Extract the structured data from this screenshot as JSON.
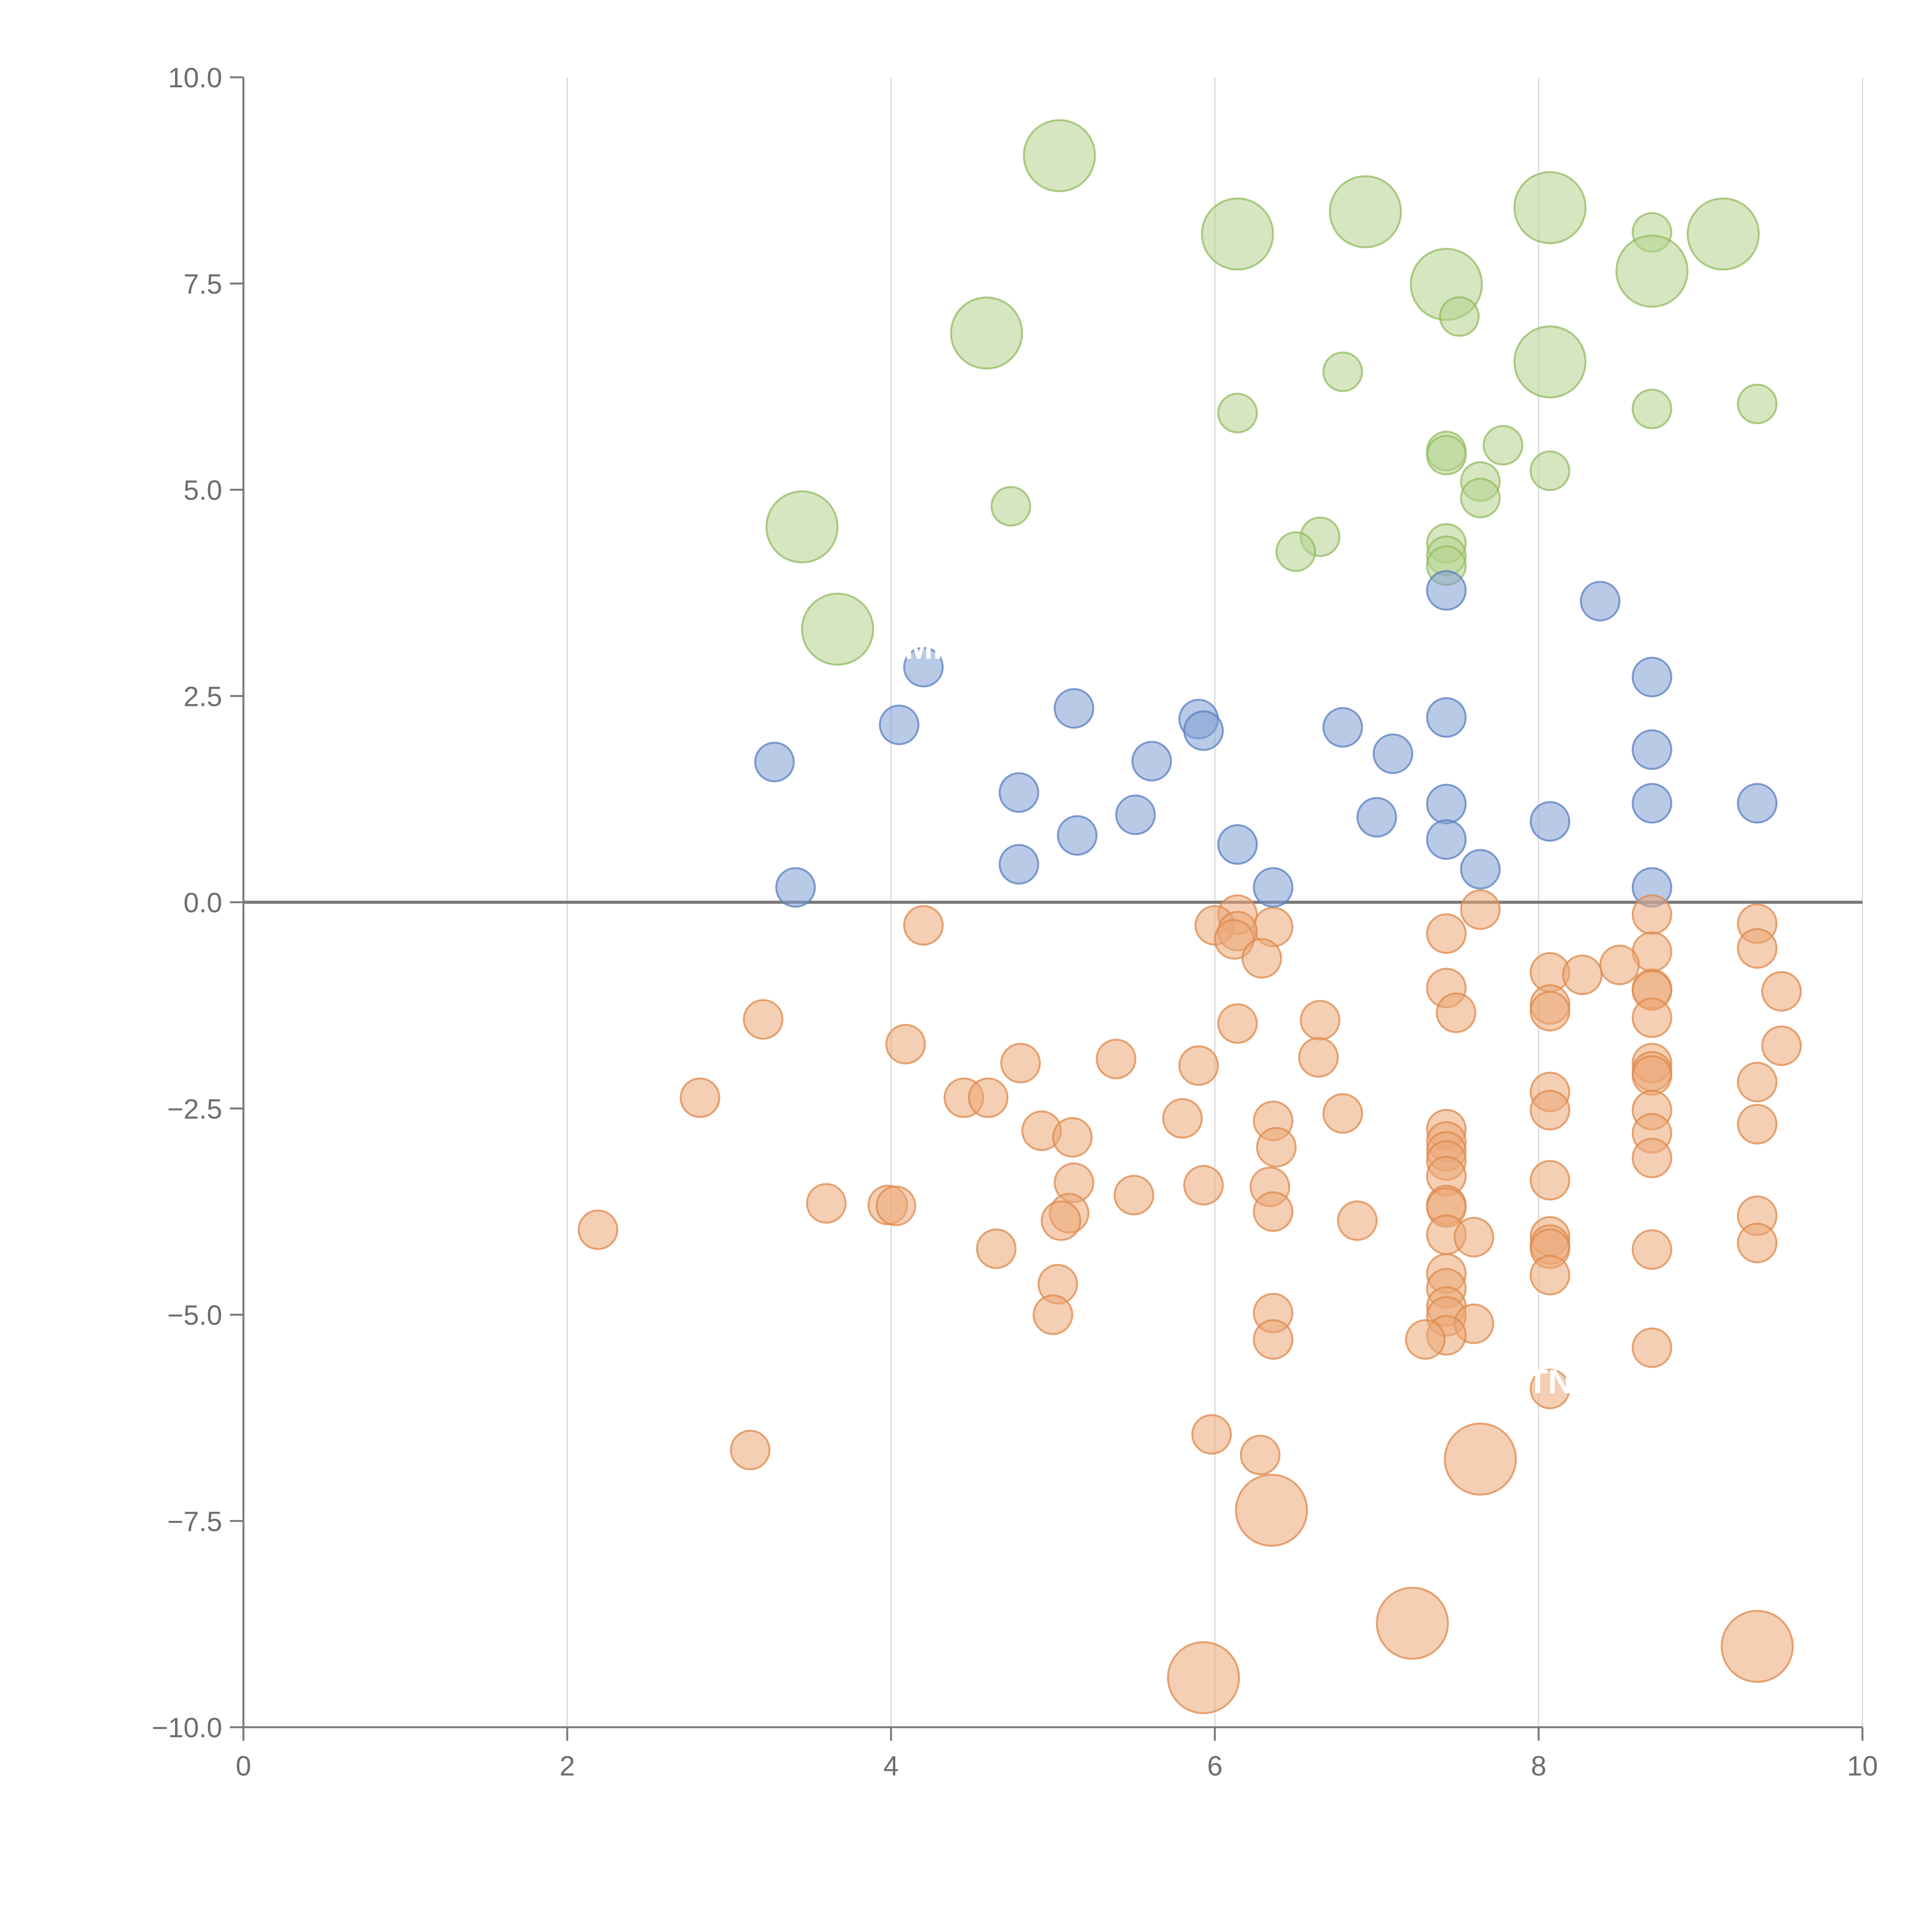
{
  "chart_data": {
    "type": "scatter",
    "title": "",
    "xlabel": "",
    "ylabel": "",
    "xlim": [
      0,
      10
    ],
    "ylim": [
      -10,
      10
    ],
    "grid": {
      "x": true,
      "y": false
    },
    "zero_line": true,
    "x_ticks": [
      0,
      2,
      4,
      6,
      8,
      10
    ],
    "x_tick_labels": [
      "0",
      "2",
      "4",
      "6",
      "8",
      "10"
    ],
    "y_ticks": [
      10,
      7.5,
      5,
      2.5,
      0,
      -2.5,
      -5,
      -7.5,
      -10
    ],
    "y_tick_labels": [
      "10.0",
      "7.5",
      "5.0",
      "2.5",
      "0.0",
      "−2.5",
      "−5.0",
      "−7.5",
      "−10.0"
    ],
    "colors": {
      "green_fill": "#b5d18c",
      "green_stroke": "#93bb60",
      "blue_fill": "#7f9fd4",
      "blue_stroke": "#5b7fc2",
      "orange_fill": "#eba876",
      "orange_stroke": "#df8a4c"
    },
    "series": [
      {
        "name": "green",
        "color": "green",
        "points": [
          {
            "x": 5.04,
            "y": 9.05,
            "s": 3
          },
          {
            "x": 6.14,
            "y": 8.1,
            "s": 3
          },
          {
            "x": 6.93,
            "y": 8.37,
            "s": 3
          },
          {
            "x": 8.07,
            "y": 8.42,
            "s": 3
          },
          {
            "x": 9.14,
            "y": 8.1,
            "s": 3
          },
          {
            "x": 8.7,
            "y": 8.12,
            "s": 1
          },
          {
            "x": 8.7,
            "y": 7.65,
            "s": 3
          },
          {
            "x": 7.43,
            "y": 7.49,
            "s": 3
          },
          {
            "x": 7.51,
            "y": 7.1,
            "s": 1
          },
          {
            "x": 4.59,
            "y": 6.9,
            "s": 3
          },
          {
            "x": 8.07,
            "y": 6.55,
            "s": 3
          },
          {
            "x": 6.79,
            "y": 6.43,
            "s": 1
          },
          {
            "x": 6.14,
            "y": 5.93,
            "s": 1
          },
          {
            "x": 8.7,
            "y": 5.98,
            "s": 1
          },
          {
            "x": 9.35,
            "y": 6.04,
            "s": 1
          },
          {
            "x": 7.43,
            "y": 5.47,
            "s": 1
          },
          {
            "x": 7.43,
            "y": 5.42,
            "s": 1
          },
          {
            "x": 7.78,
            "y": 5.54,
            "s": 1
          },
          {
            "x": 7.64,
            "y": 5.1,
            "s": 1
          },
          {
            "x": 7.64,
            "y": 4.9,
            "s": 1
          },
          {
            "x": 8.07,
            "y": 5.23,
            "s": 1
          },
          {
            "x": 4.74,
            "y": 4.8,
            "s": 1
          },
          {
            "x": 3.45,
            "y": 4.55,
            "s": 3
          },
          {
            "x": 6.65,
            "y": 4.43,
            "s": 1
          },
          {
            "x": 6.5,
            "y": 4.25,
            "s": 1
          },
          {
            "x": 7.43,
            "y": 4.35,
            "s": 1
          },
          {
            "x": 7.43,
            "y": 4.2,
            "s": 1
          },
          {
            "x": 7.43,
            "y": 4.08,
            "s": 1
          },
          {
            "x": 3.67,
            "y": 3.31,
            "s": 3
          }
        ]
      },
      {
        "name": "blue",
        "color": "blue",
        "points": [
          {
            "x": 7.43,
            "y": 3.78
          },
          {
            "x": 8.38,
            "y": 3.65
          },
          {
            "x": 4.2,
            "y": 2.85
          },
          {
            "x": 8.7,
            "y": 2.73
          },
          {
            "x": 5.13,
            "y": 2.35
          },
          {
            "x": 5.9,
            "y": 2.22
          },
          {
            "x": 7.43,
            "y": 2.24
          },
          {
            "x": 4.05,
            "y": 2.15
          },
          {
            "x": 5.93,
            "y": 2.08
          },
          {
            "x": 6.79,
            "y": 2.12
          },
          {
            "x": 8.7,
            "y": 1.85
          },
          {
            "x": 7.1,
            "y": 1.8
          },
          {
            "x": 3.28,
            "y": 1.7
          },
          {
            "x": 5.61,
            "y": 1.71
          },
          {
            "x": 4.79,
            "y": 1.33
          },
          {
            "x": 7.43,
            "y": 1.19
          },
          {
            "x": 8.7,
            "y": 1.2
          },
          {
            "x": 9.35,
            "y": 1.2
          },
          {
            "x": 5.51,
            "y": 1.06
          },
          {
            "x": 7.0,
            "y": 1.03
          },
          {
            "x": 8.07,
            "y": 0.98
          },
          {
            "x": 5.15,
            "y": 0.81
          },
          {
            "x": 7.43,
            "y": 0.76
          },
          {
            "x": 6.14,
            "y": 0.7
          },
          {
            "x": 4.79,
            "y": 0.46
          },
          {
            "x": 7.64,
            "y": 0.4
          },
          {
            "x": 3.41,
            "y": 0.18
          },
          {
            "x": 6.36,
            "y": 0.18
          },
          {
            "x": 8.7,
            "y": 0.18
          }
        ]
      },
      {
        "name": "orange",
        "color": "orange",
        "points": [
          {
            "x": 6.14,
            "y": -0.15
          },
          {
            "x": 7.64,
            "y": -0.09
          },
          {
            "x": 8.7,
            "y": -0.15
          },
          {
            "x": 4.2,
            "y": -0.28
          },
          {
            "x": 6.0,
            "y": -0.28
          },
          {
            "x": 6.36,
            "y": -0.3
          },
          {
            "x": 6.14,
            "y": -0.35
          },
          {
            "x": 6.12,
            "y": -0.45
          },
          {
            "x": 7.43,
            "y": -0.38
          },
          {
            "x": 9.35,
            "y": -0.26
          },
          {
            "x": 8.7,
            "y": -0.6
          },
          {
            "x": 9.35,
            "y": -0.56
          },
          {
            "x": 6.29,
            "y": -0.68
          },
          {
            "x": 8.5,
            "y": -0.76
          },
          {
            "x": 8.07,
            "y": -0.85
          },
          {
            "x": 8.27,
            "y": -0.88
          },
          {
            "x": 7.43,
            "y": -1.04
          },
          {
            "x": 8.7,
            "y": -1.05
          },
          {
            "x": 8.7,
            "y": -1.07
          },
          {
            "x": 9.5,
            "y": -1.08
          },
          {
            "x": 8.07,
            "y": -1.24
          },
          {
            "x": 8.07,
            "y": -1.32
          },
          {
            "x": 7.49,
            "y": -1.34
          },
          {
            "x": 3.21,
            "y": -1.42
          },
          {
            "x": 6.65,
            "y": -1.43
          },
          {
            "x": 6.14,
            "y": -1.47
          },
          {
            "x": 8.7,
            "y": -1.4
          },
          {
            "x": 4.09,
            "y": -1.72
          },
          {
            "x": 9.5,
            "y": -1.74
          },
          {
            "x": 6.64,
            "y": -1.88
          },
          {
            "x": 5.39,
            "y": -1.9
          },
          {
            "x": 4.8,
            "y": -1.95
          },
          {
            "x": 5.9,
            "y": -1.98
          },
          {
            "x": 8.7,
            "y": -1.95
          },
          {
            "x": 8.7,
            "y": -2.05
          },
          {
            "x": 8.7,
            "y": -2.1
          },
          {
            "x": 9.35,
            "y": -2.18
          },
          {
            "x": 2.82,
            "y": -2.37
          },
          {
            "x": 4.45,
            "y": -2.37
          },
          {
            "x": 4.6,
            "y": -2.37
          },
          {
            "x": 8.07,
            "y": -2.3
          },
          {
            "x": 8.07,
            "y": -2.52
          },
          {
            "x": 8.7,
            "y": -2.52
          },
          {
            "x": 6.79,
            "y": -2.56
          },
          {
            "x": 5.8,
            "y": -2.62
          },
          {
            "x": 6.36,
            "y": -2.65
          },
          {
            "x": 9.35,
            "y": -2.69
          },
          {
            "x": 7.43,
            "y": -2.75
          },
          {
            "x": 4.93,
            "y": -2.77
          },
          {
            "x": 8.7,
            "y": -2.8
          },
          {
            "x": 5.12,
            "y": -2.85
          },
          {
            "x": 7.43,
            "y": -2.9
          },
          {
            "x": 7.43,
            "y": -3.02
          },
          {
            "x": 6.38,
            "y": -2.97
          },
          {
            "x": 8.7,
            "y": -3.1
          },
          {
            "x": 7.43,
            "y": -3.13
          },
          {
            "x": 7.43,
            "y": -3.32
          },
          {
            "x": 8.07,
            "y": -3.37
          },
          {
            "x": 5.13,
            "y": -3.4
          },
          {
            "x": 5.93,
            "y": -3.43
          },
          {
            "x": 6.34,
            "y": -3.45
          },
          {
            "x": 5.5,
            "y": -3.55
          },
          {
            "x": 3.6,
            "y": -3.65
          },
          {
            "x": 3.98,
            "y": -3.67
          },
          {
            "x": 4.03,
            "y": -3.68
          },
          {
            "x": 7.43,
            "y": -3.67
          },
          {
            "x": 7.43,
            "y": -3.7
          },
          {
            "x": 6.36,
            "y": -3.75
          },
          {
            "x": 5.1,
            "y": -3.77
          },
          {
            "x": 9.35,
            "y": -3.8
          },
          {
            "x": 6.88,
            "y": -3.86
          },
          {
            "x": 5.05,
            "y": -3.86
          },
          {
            "x": 2.19,
            "y": -3.97
          },
          {
            "x": 8.07,
            "y": -4.05
          },
          {
            "x": 7.43,
            "y": -4.03
          },
          {
            "x": 7.6,
            "y": -4.06
          },
          {
            "x": 9.35,
            "y": -4.13
          },
          {
            "x": 8.07,
            "y": -4.15
          },
          {
            "x": 4.65,
            "y": -4.2
          },
          {
            "x": 8.07,
            "y": -4.2
          },
          {
            "x": 8.7,
            "y": -4.21
          },
          {
            "x": 7.43,
            "y": -4.5
          },
          {
            "x": 8.07,
            "y": -4.52
          },
          {
            "x": 7.43,
            "y": -4.68
          },
          {
            "x": 5.03,
            "y": -4.63
          },
          {
            "x": 7.43,
            "y": -4.9
          },
          {
            "x": 6.36,
            "y": -4.98
          },
          {
            "x": 5.0,
            "y": -5.0
          },
          {
            "x": 7.43,
            "y": -5.02
          },
          {
            "x": 7.6,
            "y": -5.11
          },
          {
            "x": 7.43,
            "y": -5.25
          },
          {
            "x": 7.3,
            "y": -5.3
          },
          {
            "x": 6.36,
            "y": -5.3
          },
          {
            "x": 8.7,
            "y": -5.4
          },
          {
            "x": 8.07,
            "y": -5.9
          },
          {
            "x": 5.98,
            "y": -6.45
          },
          {
            "x": 3.13,
            "y": -6.64
          },
          {
            "x": 6.28,
            "y": -6.7
          },
          {
            "x": 7.64,
            "y": -6.75,
            "s": 3
          },
          {
            "x": 6.35,
            "y": -7.37,
            "s": 3
          },
          {
            "x": 7.22,
            "y": -8.74,
            "s": 3
          },
          {
            "x": 9.35,
            "y": -9.02,
            "s": 3
          },
          {
            "x": 5.93,
            "y": -9.4,
            "s": 3
          }
        ]
      }
    ],
    "annotations": [
      {
        "text": "MI",
        "x": 4.2,
        "y": 2.95
      },
      {
        "text": "TN",
        "x": 8.07,
        "y": -5.95
      }
    ]
  }
}
